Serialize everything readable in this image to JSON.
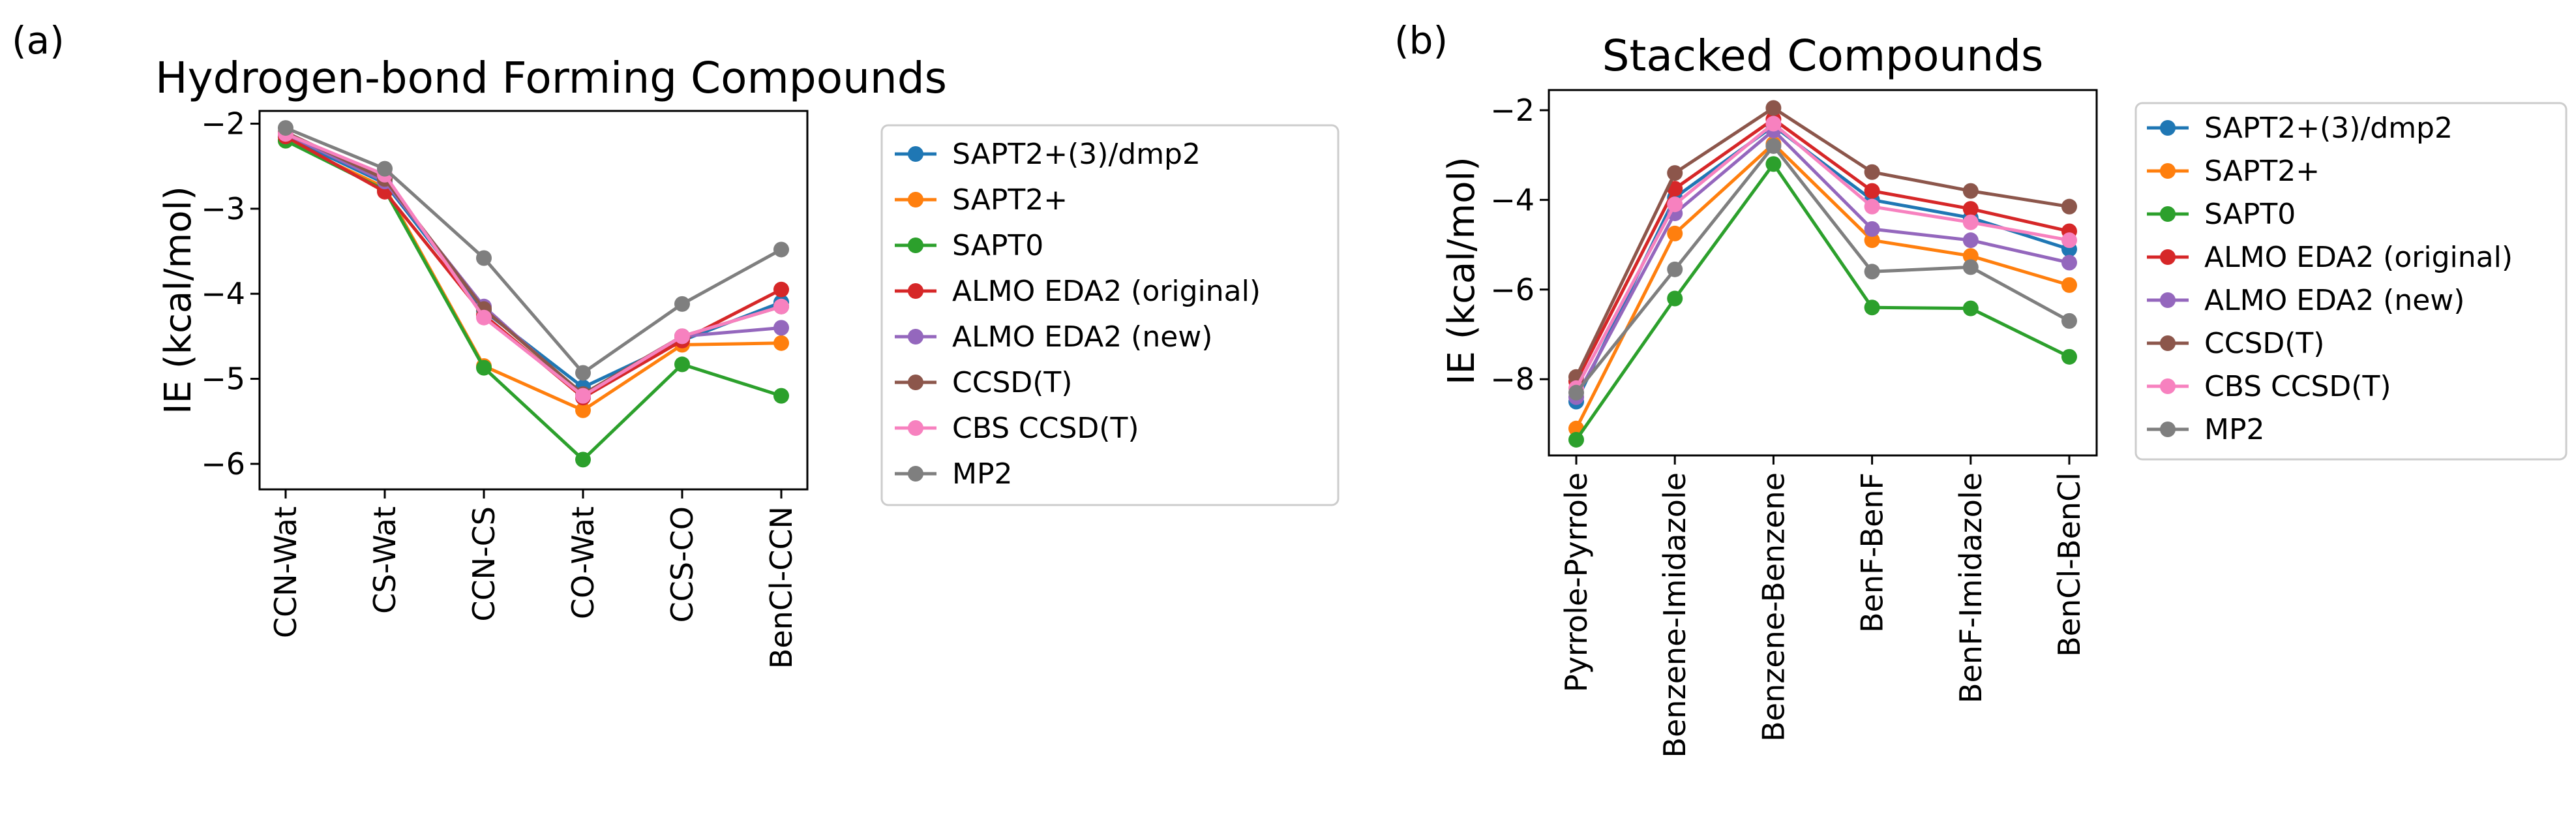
{
  "chart_data": [
    {
      "type": "line",
      "panel_label": "(a)",
      "title": "Hydrogen-bond Forming Compounds",
      "xlabel": "",
      "ylabel": "IE (kcal/mol)",
      "categories": [
        "CCN-Wat",
        "CS-Wat",
        "CCN-CS",
        "CO-Wat",
        "CCS-CO",
        "BenCl-CCN"
      ],
      "yticks": [
        -6,
        -5,
        -4,
        -3,
        -2
      ],
      "ytick_labels": [
        "−6",
        "−5",
        "−4",
        "−3",
        "−2"
      ],
      "ylim": [
        -6.3,
        -1.85
      ],
      "grid": false,
      "legend_position": "outside-right",
      "series": [
        {
          "name": "SAPT2+(3)/dmp2",
          "color": "#1f77b4",
          "values": [
            -2.15,
            -2.7,
            -4.2,
            -5.1,
            -4.55,
            -4.1
          ]
        },
        {
          "name": "SAPT2+",
          "color": "#ff7f0e",
          "values": [
            -2.2,
            -2.75,
            -4.85,
            -5.37,
            -4.6,
            -4.58
          ]
        },
        {
          "name": "SAPT0",
          "color": "#2ca02c",
          "values": [
            -2.2,
            -2.78,
            -4.87,
            -5.95,
            -4.83,
            -5.2
          ]
        },
        {
          "name": "ALMO EDA2 (original)",
          "color": "#d62728",
          "values": [
            -2.15,
            -2.8,
            -4.25,
            -5.22,
            -4.55,
            -3.95
          ]
        },
        {
          "name": "ALMO EDA2 (new)",
          "color": "#9467bd",
          "values": [
            -2.12,
            -2.68,
            -4.15,
            -5.2,
            -4.5,
            -4.4
          ]
        },
        {
          "name": "CCSD(T)",
          "color": "#8c564b",
          "values": [
            -2.1,
            -2.65,
            -4.18,
            -5.18,
            -4.5,
            -4.15
          ]
        },
        {
          "name": "CBS CCSD(T)",
          "color": "#f781bf",
          "values": [
            -2.12,
            -2.6,
            -4.28,
            -5.2,
            -4.5,
            -4.15
          ]
        },
        {
          "name": "MP2",
          "color": "#7f7f7f",
          "values": [
            -2.05,
            -2.53,
            -3.58,
            -4.93,
            -4.12,
            -3.48
          ]
        }
      ]
    },
    {
      "type": "line",
      "panel_label": "(b)",
      "title": "Stacked Compounds",
      "xlabel": "",
      "ylabel": "IE (kcal/mol)",
      "categories": [
        "Pyrrole-Pyrrole",
        "Benzene-Imidazole",
        "Benzene-Benzene",
        "BenF-BenF",
        "BenF-Imidazole",
        "BenCl-BenCl"
      ],
      "yticks": [
        -8,
        -6,
        -4,
        -2
      ],
      "ytick_labels": [
        "−8",
        "−6",
        "−4",
        "−2"
      ],
      "ylim": [
        -9.7,
        -1.55
      ],
      "grid": false,
      "legend_position": "outside-right",
      "series": [
        {
          "name": "SAPT2+(3)/dmp2",
          "color": "#1f77b4",
          "values": [
            -8.5,
            -3.95,
            -2.35,
            -4.0,
            -4.4,
            -5.1
          ]
        },
        {
          "name": "SAPT2+",
          "color": "#ff7f0e",
          "values": [
            -9.1,
            -4.75,
            -2.75,
            -4.9,
            -5.25,
            -5.9
          ]
        },
        {
          "name": "SAPT0",
          "color": "#2ca02c",
          "values": [
            -9.35,
            -6.2,
            -3.2,
            -6.4,
            -6.42,
            -7.5
          ]
        },
        {
          "name": "ALMO EDA2 (original)",
          "color": "#d62728",
          "values": [
            -8.05,
            -3.75,
            -2.2,
            -3.8,
            -4.2,
            -4.7
          ]
        },
        {
          "name": "ALMO EDA2 (new)",
          "color": "#9467bd",
          "values": [
            -8.4,
            -4.3,
            -2.45,
            -4.65,
            -4.9,
            -5.4
          ]
        },
        {
          "name": "CCSD(T)",
          "color": "#8c564b",
          "values": [
            -7.95,
            -3.4,
            -1.95,
            -3.38,
            -3.8,
            -4.15
          ]
        },
        {
          "name": "CBS CCSD(T)",
          "color": "#f781bf",
          "values": [
            -8.2,
            -4.1,
            -2.3,
            -4.15,
            -4.5,
            -4.9
          ]
        },
        {
          "name": "MP2",
          "color": "#7f7f7f",
          "values": [
            -8.3,
            -5.55,
            -2.8,
            -5.6,
            -5.5,
            -6.7
          ]
        }
      ]
    }
  ]
}
